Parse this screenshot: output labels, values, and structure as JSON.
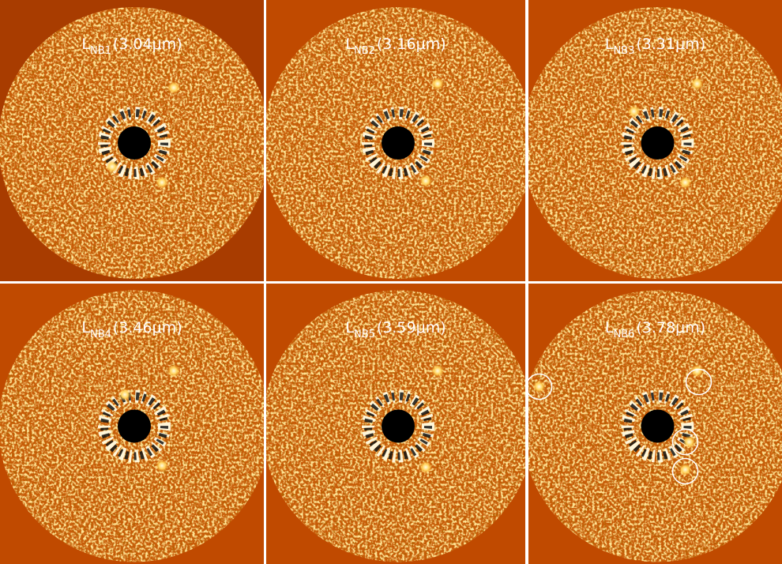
{
  "panels": [
    {
      "letter": "L",
      "sub": "NB1",
      "wavelength": "(3.04μm)"
    },
    {
      "letter": "L",
      "sub": "NB2",
      "wavelength": "(3.16μm)"
    },
    {
      "letter": "L",
      "sub": "NB3",
      "wavelength": "(3.31μm)"
    },
    {
      "letter": "L",
      "sub": "NB4",
      "wavelength": "(3.46μm)"
    },
    {
      "letter": "L",
      "sub": "NB5",
      "wavelength": "(3.59μm)"
    },
    {
      "letter": "L",
      "sub": "NB6",
      "wavelength": "(3.78μm)"
    }
  ]
}
